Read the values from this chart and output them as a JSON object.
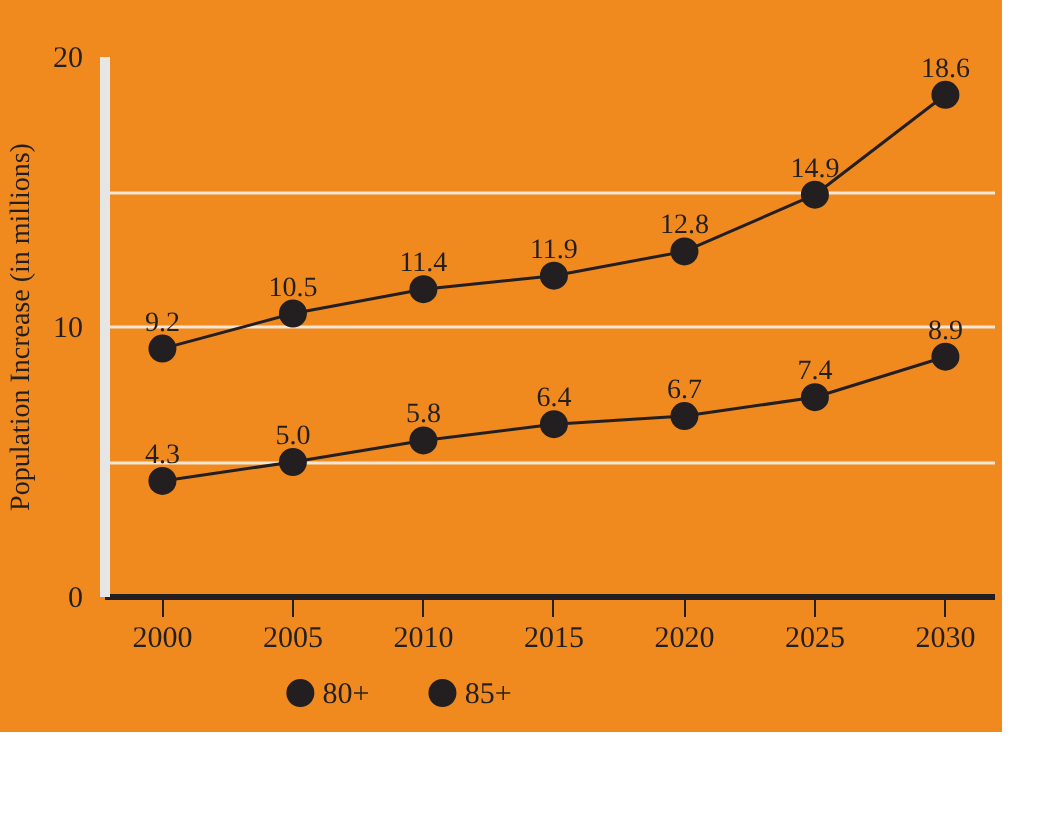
{
  "chart_data": {
    "type": "line",
    "ylabel": "Population Increase (in millions)",
    "x": [
      2000,
      2005,
      2010,
      2015,
      2020,
      2025,
      2030
    ],
    "xlim": [
      1997.8,
      2031.9
    ],
    "xticks": [
      2000,
      2005,
      2010,
      2015,
      2020,
      2025,
      2030
    ],
    "ylim": [
      0,
      20
    ],
    "yticks": [
      0,
      {
        "value": 5,
        "label": null
      },
      10,
      {
        "value": 15,
        "label": null
      },
      20
    ],
    "series": [
      {
        "name": "80+",
        "color": "#231f20",
        "values": [
          4.3,
          5.0,
          5.8,
          6.4,
          6.7,
          7.4,
          8.9
        ],
        "value_labels": [
          "4.3",
          "5.0",
          "5.8",
          "6.4",
          "6.7",
          "7.4",
          "8.9"
        ]
      },
      {
        "name": "85+",
        "color": "#231f20",
        "values": [
          9.2,
          10.5,
          11.4,
          11.9,
          12.8,
          14.9,
          18.6
        ],
        "value_labels": [
          "9.2",
          "10.5",
          "11.4",
          "11.9",
          "12.8",
          "14.9",
          "18.6"
        ]
      }
    ],
    "grid": "y",
    "legend": "bottom",
    "marker": "circle",
    "line_style": "solid"
  }
}
